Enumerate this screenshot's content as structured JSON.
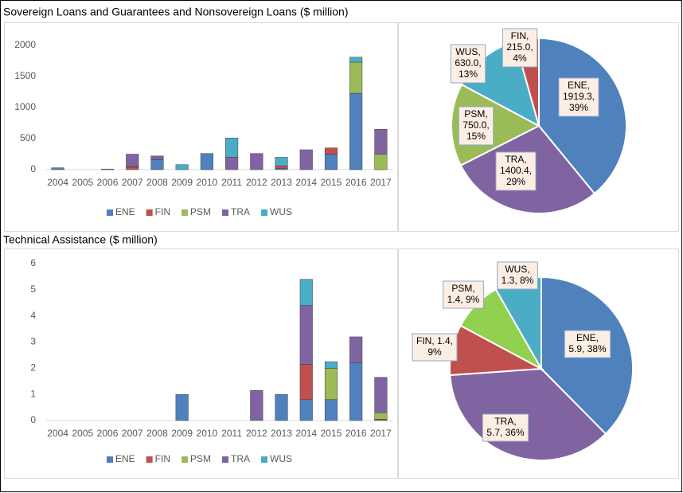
{
  "chart_data": [
    {
      "type": "bar",
      "stacked": true,
      "title": "Sovereign Loans and Guarantees and Nonsovereign Loans ($ million)",
      "categories": [
        "2004",
        "2005",
        "2006",
        "2007",
        "2008",
        "2009",
        "2010",
        "2011",
        "2012",
        "2013",
        "2014",
        "2015",
        "2016",
        "2017"
      ],
      "series": [
        {
          "name": "ENE",
          "color": "#4f81bd",
          "values": [
            30,
            0,
            0,
            0,
            160,
            0,
            260,
            0,
            0,
            20,
            0,
            250,
            1230,
            0
          ]
        },
        {
          "name": "FIN",
          "color": "#c0504d",
          "values": [
            0,
            0,
            0,
            40,
            0,
            0,
            0,
            0,
            0,
            40,
            0,
            100,
            0,
            0
          ]
        },
        {
          "name": "PSM",
          "color": "#9bbb59",
          "values": [
            0,
            0,
            0,
            10,
            0,
            0,
            0,
            0,
            0,
            0,
            0,
            0,
            500,
            250
          ]
        },
        {
          "name": "TRA",
          "color": "#8064a2",
          "values": [
            0,
            0,
            10,
            200,
            60,
            0,
            0,
            200,
            260,
            0,
            320,
            0,
            0,
            400
          ]
        },
        {
          "name": "WUS",
          "color": "#4bacc6",
          "values": [
            0,
            0,
            0,
            0,
            0,
            80,
            0,
            310,
            0,
            140,
            0,
            0,
            80,
            0
          ]
        }
      ],
      "ylim": [
        0,
        2000
      ],
      "yticks": [
        0,
        500,
        1000,
        1500,
        2000
      ],
      "grid": false,
      "legend": "bottom"
    },
    {
      "type": "pie",
      "categories": [
        "ENE",
        "TRA",
        "PSM",
        "WUS",
        "FIN"
      ],
      "values": [
        1919.3,
        1400.4,
        750.0,
        630.0,
        215.0
      ],
      "colors": [
        "#4f81bd",
        "#8064a2",
        "#9bbb59",
        "#4bacc6",
        "#c0504d"
      ],
      "value_labels": [
        [
          "ENE,",
          "1919.3,",
          "39%"
        ],
        [
          "TRA,",
          "1400.4,",
          "29%"
        ],
        [
          "PSM,",
          "750.0,",
          "15%"
        ],
        [
          "WUS,",
          "630.0,",
          "13%"
        ],
        [
          "FIN,",
          "215.0,",
          "4%"
        ]
      ]
    },
    {
      "type": "bar",
      "stacked": true,
      "title": "Technical Assistance ($ million)",
      "categories": [
        "2004",
        "2005",
        "2006",
        "2007",
        "2008",
        "2009",
        "2010",
        "2011",
        "2012",
        "2013",
        "2014",
        "2015",
        "2016",
        "2017"
      ],
      "series": [
        {
          "name": "ENE",
          "color": "#4f81bd",
          "values": [
            0,
            0,
            0,
            0,
            0,
            1.0,
            0,
            0,
            0,
            1.0,
            0.8,
            0.8,
            2.2,
            0
          ]
        },
        {
          "name": "FIN",
          "color": "#c0504d",
          "values": [
            0,
            0,
            0,
            0,
            0,
            0,
            0,
            0,
            0,
            0,
            1.35,
            0,
            0,
            0.05
          ]
        },
        {
          "name": "PSM",
          "color": "#9bbb59",
          "values": [
            0,
            0,
            0,
            0,
            0,
            0,
            0,
            0,
            0,
            0,
            0,
            1.2,
            0,
            0.25
          ]
        },
        {
          "name": "TRA",
          "color": "#8064a2",
          "values": [
            0,
            0,
            0,
            0,
            0,
            0,
            0,
            0,
            1.15,
            0,
            2.25,
            0,
            1.0,
            1.35
          ]
        },
        {
          "name": "WUS",
          "color": "#4bacc6",
          "values": [
            0,
            0,
            0,
            0,
            0,
            0,
            0,
            0,
            0,
            0,
            1.0,
            0.25,
            0,
            0
          ]
        }
      ],
      "ylim": [
        0,
        6
      ],
      "yticks": [
        0,
        1,
        2,
        3,
        4,
        5,
        6
      ],
      "grid": false,
      "legend": "bottom"
    },
    {
      "type": "pie",
      "categories": [
        "ENE",
        "TRA",
        "FIN",
        "PSM",
        "WUS"
      ],
      "values": [
        5.9,
        5.7,
        1.4,
        1.4,
        1.3
      ],
      "colors": [
        "#4f81bd",
        "#8064a2",
        "#c0504d",
        "#92d050",
        "#4bacc6"
      ],
      "value_labels": [
        [
          "ENE,",
          "5.9, 38%"
        ],
        [
          "TRA,",
          "5.7, 36%"
        ],
        [
          "FIN, 1.4,",
          "9%"
        ],
        [
          "PSM,",
          "1.4, 9%"
        ],
        [
          "WUS,",
          "1.3, 8%"
        ]
      ]
    }
  ]
}
